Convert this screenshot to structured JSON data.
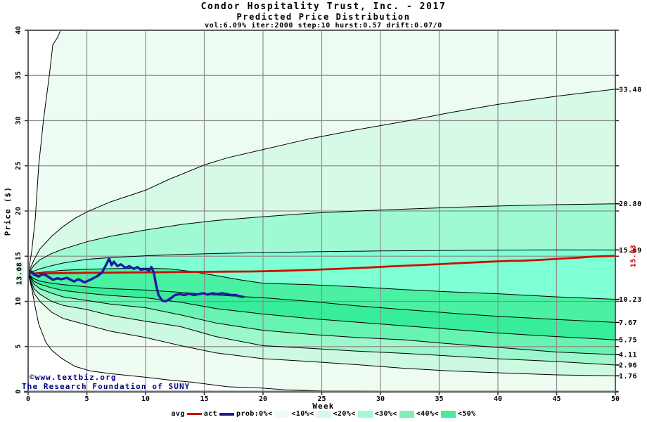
{
  "header": {
    "title": "Condor Hospitality Trust, Inc. - 2017",
    "subtitle": "Predicted Price Distribution",
    "params": "vol:6.09% iter:2000 step:10 hurst:0.57 drift:0.07/0"
  },
  "watermark": {
    "line1": "©www.textbiz.org",
    "line2": "The Research Foundation of SUNY"
  },
  "legend": {
    "avg_label": "avg",
    "act_label": "act",
    "band_labels": [
      "prob:0%<",
      "<10%<",
      "<20%<",
      "<30%<",
      "<40%<",
      "<50%"
    ]
  },
  "annotations": {
    "start_price": "13.08",
    "end_avg": "15.03"
  },
  "colors": {
    "avg": "#c91000",
    "act": "#1c1c9e",
    "grid": "#8e8e8e",
    "border": "#5f5f5f",
    "axis_bottom": "#707070",
    "tick": "#333333",
    "curve": "#000000",
    "watermark": "#000080",
    "end_label": "#cc0000",
    "start_label_bg": "#def9e9",
    "band_fills": [
      "#edfcf2",
      "#d7fae6",
      "#9ffad3",
      "#7fffd4",
      "#4af1a2",
      "#37ed99",
      "#67f3b2",
      "#9cf7cb",
      "#cdf9e1",
      "#eefcf2"
    ],
    "legend_swatches": [
      "#edfbf1",
      "#d5f9e4",
      "#a8f7d0",
      "#7eefb8",
      "#4ee89d"
    ]
  },
  "chart_data": {
    "type": "area",
    "title": "Condor Hospitality Trust, Inc. - 2017",
    "subtitle": "Predicted Price Distribution",
    "xlabel": "Week",
    "ylabel": "Price ($)",
    "xlim": [
      0,
      50
    ],
    "ylim": [
      0,
      40
    ],
    "x_ticks": [
      0,
      5,
      10,
      15,
      20,
      25,
      30,
      35,
      40,
      45,
      50
    ],
    "y_ticks": [
      0,
      5,
      10,
      15,
      20,
      25,
      30,
      35,
      40
    ],
    "grid": true,
    "start_price": 13.08,
    "right_labels": [
      {
        "text": "33.48",
        "value": 33.48
      },
      {
        "text": "20.80",
        "value": 20.8
      },
      {
        "text": "15.69",
        "value": 15.69
      },
      {
        "text": "10.23",
        "value": 10.23
      },
      {
        "text": "7.67",
        "value": 7.67
      },
      {
        "text": "5.75",
        "value": 5.75
      },
      {
        "text": "4.11",
        "value": 4.11
      },
      {
        "text": "2.96",
        "value": 2.96
      },
      {
        "text": "1.76",
        "value": 1.76
      }
    ],
    "end_avg_value": 15.03,
    "percentile_curves": [
      {
        "name": "p-max",
        "points": [
          [
            0,
            13.08
          ],
          [
            0.3,
            15.5
          ],
          [
            0.6,
            19.0
          ],
          [
            0.9,
            25.0
          ],
          [
            1.3,
            30.0
          ],
          [
            1.8,
            35.0
          ],
          [
            2.1,
            38.4
          ],
          [
            2.5,
            39.2
          ],
          [
            2.9,
            40.4
          ],
          [
            4,
            41
          ],
          [
            50,
            41
          ]
        ]
      },
      {
        "name": "p-33.48",
        "points": [
          [
            0,
            13.08
          ],
          [
            0.5,
            14.6
          ],
          [
            1,
            15.8
          ],
          [
            2,
            17.2
          ],
          [
            3,
            18.3
          ],
          [
            4,
            19.2
          ],
          [
            5,
            19.9
          ],
          [
            7,
            21.0
          ],
          [
            10,
            22.3
          ],
          [
            12,
            23.5
          ],
          [
            15,
            25.1
          ],
          [
            17,
            25.9
          ],
          [
            20,
            26.8
          ],
          [
            24,
            28.0
          ],
          [
            28,
            29.0
          ],
          [
            32,
            29.9
          ],
          [
            36,
            30.9
          ],
          [
            40,
            31.8
          ],
          [
            45,
            32.7
          ],
          [
            50,
            33.48
          ]
        ]
      },
      {
        "name": "p-20.80",
        "points": [
          [
            0,
            13.08
          ],
          [
            0.5,
            14.0
          ],
          [
            1,
            14.6
          ],
          [
            2,
            15.3
          ],
          [
            3,
            15.8
          ],
          [
            5,
            16.6
          ],
          [
            7,
            17.2
          ],
          [
            10,
            17.9
          ],
          [
            13,
            18.5
          ],
          [
            16,
            18.95
          ],
          [
            20,
            19.37
          ],
          [
            24,
            19.75
          ],
          [
            28,
            20.0
          ],
          [
            32,
            20.2
          ],
          [
            36,
            20.4
          ],
          [
            40,
            20.55
          ],
          [
            45,
            20.7
          ],
          [
            50,
            20.8
          ]
        ]
      },
      {
        "name": "p-15.69",
        "points": [
          [
            0,
            13.08
          ],
          [
            1,
            13.6
          ],
          [
            2,
            13.95
          ],
          [
            3,
            14.25
          ],
          [
            5,
            14.65
          ],
          [
            7,
            14.85
          ],
          [
            10,
            15.05
          ],
          [
            13,
            15.2
          ],
          [
            16,
            15.3
          ],
          [
            20,
            15.4
          ],
          [
            25,
            15.5
          ],
          [
            30,
            15.58
          ],
          [
            35,
            15.63
          ],
          [
            40,
            15.67
          ],
          [
            45,
            15.7
          ],
          [
            50,
            15.69
          ]
        ]
      },
      {
        "name": "p-10.23",
        "points": [
          [
            0,
            13.08
          ],
          [
            1,
            13.2
          ],
          [
            3,
            13.45
          ],
          [
            5,
            13.55
          ],
          [
            8,
            13.65
          ],
          [
            10,
            13.68
          ],
          [
            12,
            13.6
          ],
          [
            14,
            13.3
          ],
          [
            16,
            12.85
          ],
          [
            18,
            12.4
          ],
          [
            20,
            12.0
          ],
          [
            24,
            11.85
          ],
          [
            28,
            11.6
          ],
          [
            32,
            11.3
          ],
          [
            36,
            11.05
          ],
          [
            40,
            10.85
          ],
          [
            45,
            10.5
          ],
          [
            50,
            10.23
          ]
        ]
      },
      {
        "name": "p-7.67",
        "points": [
          [
            0,
            13.08
          ],
          [
            0.5,
            12.5
          ],
          [
            1,
            12.25
          ],
          [
            2,
            12.0
          ],
          [
            3,
            11.85
          ],
          [
            5,
            11.6
          ],
          [
            7,
            11.4
          ],
          [
            10,
            11.25
          ],
          [
            13,
            11.0
          ],
          [
            16,
            10.7
          ],
          [
            20,
            10.4
          ],
          [
            24,
            10.0
          ],
          [
            28,
            9.5
          ],
          [
            32,
            9.1
          ],
          [
            36,
            8.7
          ],
          [
            40,
            8.35
          ],
          [
            45,
            8.0
          ],
          [
            50,
            7.67
          ]
        ]
      },
      {
        "name": "p-5.75",
        "points": [
          [
            0,
            13.08
          ],
          [
            0.5,
            12.2
          ],
          [
            1,
            11.9
          ],
          [
            2,
            11.5
          ],
          [
            3,
            11.2
          ],
          [
            5,
            10.9
          ],
          [
            7,
            10.65
          ],
          [
            10,
            10.4
          ],
          [
            13,
            9.9
          ],
          [
            16,
            9.2
          ],
          [
            20,
            8.6
          ],
          [
            24,
            8.1
          ],
          [
            28,
            7.7
          ],
          [
            32,
            7.3
          ],
          [
            36,
            6.9
          ],
          [
            40,
            6.5
          ],
          [
            45,
            6.1
          ],
          [
            50,
            5.75
          ]
        ]
      },
      {
        "name": "p-4.11",
        "points": [
          [
            0,
            13.08
          ],
          [
            0.5,
            11.9
          ],
          [
            1,
            11.4
          ],
          [
            2,
            10.9
          ],
          [
            3,
            10.5
          ],
          [
            5,
            10.1
          ],
          [
            7,
            9.7
          ],
          [
            10,
            9.3
          ],
          [
            13,
            8.5
          ],
          [
            16,
            7.6
          ],
          [
            20,
            6.8
          ],
          [
            24,
            6.35
          ],
          [
            28,
            6.0
          ],
          [
            32,
            5.75
          ],
          [
            36,
            5.3
          ],
          [
            40,
            4.9
          ],
          [
            45,
            4.4
          ],
          [
            50,
            4.11
          ]
        ]
      },
      {
        "name": "p-2.96",
        "points": [
          [
            0,
            13.08
          ],
          [
            0.5,
            11.4
          ],
          [
            1,
            10.8
          ],
          [
            2,
            10.0
          ],
          [
            3,
            9.55
          ],
          [
            5,
            9.1
          ],
          [
            7,
            8.45
          ],
          [
            10,
            7.8
          ],
          [
            13,
            7.2
          ],
          [
            16,
            6.1
          ],
          [
            20,
            5.1
          ],
          [
            24,
            4.8
          ],
          [
            28,
            4.5
          ],
          [
            32,
            4.25
          ],
          [
            36,
            3.95
          ],
          [
            40,
            3.65
          ],
          [
            45,
            3.35
          ],
          [
            50,
            2.96
          ]
        ]
      },
      {
        "name": "p-1.76",
        "points": [
          [
            0,
            13.08
          ],
          [
            0.5,
            10.9
          ],
          [
            1,
            10.0
          ],
          [
            2,
            8.8
          ],
          [
            3,
            8.1
          ],
          [
            5,
            7.4
          ],
          [
            7,
            6.7
          ],
          [
            10,
            6.0
          ],
          [
            13,
            5.1
          ],
          [
            16,
            4.3
          ],
          [
            20,
            3.66
          ],
          [
            24,
            3.35
          ],
          [
            28,
            3.0
          ],
          [
            32,
            2.6
          ],
          [
            36,
            2.3
          ],
          [
            40,
            2.1
          ],
          [
            45,
            1.87
          ],
          [
            50,
            1.76
          ]
        ]
      },
      {
        "name": "p-min",
        "points": [
          [
            0,
            13.08
          ],
          [
            0.3,
            11.5
          ],
          [
            0.6,
            9.4
          ],
          [
            0.9,
            7.5
          ],
          [
            1.5,
            5.5
          ],
          [
            2,
            4.6
          ],
          [
            2.9,
            3.65
          ],
          [
            4,
            2.8
          ],
          [
            5.3,
            2.3
          ],
          [
            7,
            2.0
          ],
          [
            10,
            1.6
          ],
          [
            12,
            1.3
          ],
          [
            14,
            1.05
          ],
          [
            17,
            0.55
          ],
          [
            20,
            0.4
          ],
          [
            22,
            0.2
          ],
          [
            25,
            0.1
          ],
          [
            30,
            0.08
          ],
          [
            35,
            0.07
          ],
          [
            40,
            0.06
          ],
          [
            45,
            0.06
          ],
          [
            50,
            0.06
          ]
        ]
      }
    ],
    "series": [
      {
        "name": "avg",
        "points": [
          [
            0,
            13.08
          ],
          [
            1,
            13.1
          ],
          [
            3,
            13.13
          ],
          [
            5,
            13.16
          ],
          [
            7,
            13.18
          ],
          [
            9,
            13.2
          ],
          [
            11,
            13.22
          ],
          [
            13,
            13.25
          ],
          [
            15,
            13.27
          ],
          [
            17,
            13.29
          ],
          [
            19,
            13.31
          ],
          [
            21,
            13.36
          ],
          [
            23,
            13.44
          ],
          [
            25,
            13.53
          ],
          [
            27,
            13.63
          ],
          [
            29,
            13.75
          ],
          [
            31,
            13.88
          ],
          [
            33,
            14.0
          ],
          [
            35,
            14.12
          ],
          [
            37,
            14.25
          ],
          [
            39,
            14.37
          ],
          [
            41,
            14.48
          ],
          [
            42,
            14.5
          ],
          [
            43,
            14.55
          ],
          [
            44,
            14.62
          ],
          [
            45,
            14.7
          ],
          [
            46,
            14.78
          ],
          [
            47,
            14.85
          ],
          [
            48,
            14.95
          ],
          [
            49,
            15.0
          ],
          [
            50,
            15.03
          ]
        ]
      },
      {
        "name": "act",
        "points": [
          [
            0,
            13.1
          ],
          [
            0.3,
            13.3
          ],
          [
            0.5,
            12.95
          ],
          [
            0.9,
            12.75
          ],
          [
            1.2,
            13.0
          ],
          [
            1.5,
            12.9
          ],
          [
            2.1,
            12.4
          ],
          [
            2.5,
            12.55
          ],
          [
            2.8,
            12.45
          ],
          [
            3.3,
            12.6
          ],
          [
            3.9,
            12.2
          ],
          [
            4.3,
            12.45
          ],
          [
            4.8,
            12.1
          ],
          [
            5.3,
            12.4
          ],
          [
            5.9,
            12.8
          ],
          [
            6.3,
            13.2
          ],
          [
            6.7,
            14.2
          ],
          [
            6.9,
            14.75
          ],
          [
            7.1,
            14.0
          ],
          [
            7.3,
            14.4
          ],
          [
            7.6,
            13.9
          ],
          [
            7.9,
            14.1
          ],
          [
            8.3,
            13.7
          ],
          [
            8.6,
            13.9
          ],
          [
            9.0,
            13.6
          ],
          [
            9.3,
            13.8
          ],
          [
            9.6,
            13.5
          ],
          [
            10.0,
            13.6
          ],
          [
            10.3,
            13.4
          ],
          [
            10.5,
            13.8
          ],
          [
            10.7,
            13.2
          ],
          [
            10.9,
            11.8
          ],
          [
            11.1,
            10.7
          ],
          [
            11.4,
            10.1
          ],
          [
            11.7,
            10.0
          ],
          [
            12.1,
            10.3
          ],
          [
            12.5,
            10.7
          ],
          [
            12.9,
            10.8
          ],
          [
            13.3,
            10.7
          ],
          [
            13.7,
            10.85
          ],
          [
            14.1,
            10.7
          ],
          [
            14.5,
            10.8
          ],
          [
            14.9,
            10.9
          ],
          [
            15.3,
            10.75
          ],
          [
            15.7,
            10.9
          ],
          [
            16.1,
            10.8
          ],
          [
            16.5,
            10.9
          ],
          [
            16.9,
            10.8
          ],
          [
            17.3,
            10.7
          ],
          [
            17.7,
            10.7
          ],
          [
            18.0,
            10.55
          ],
          [
            18.3,
            10.5
          ]
        ]
      }
    ]
  }
}
